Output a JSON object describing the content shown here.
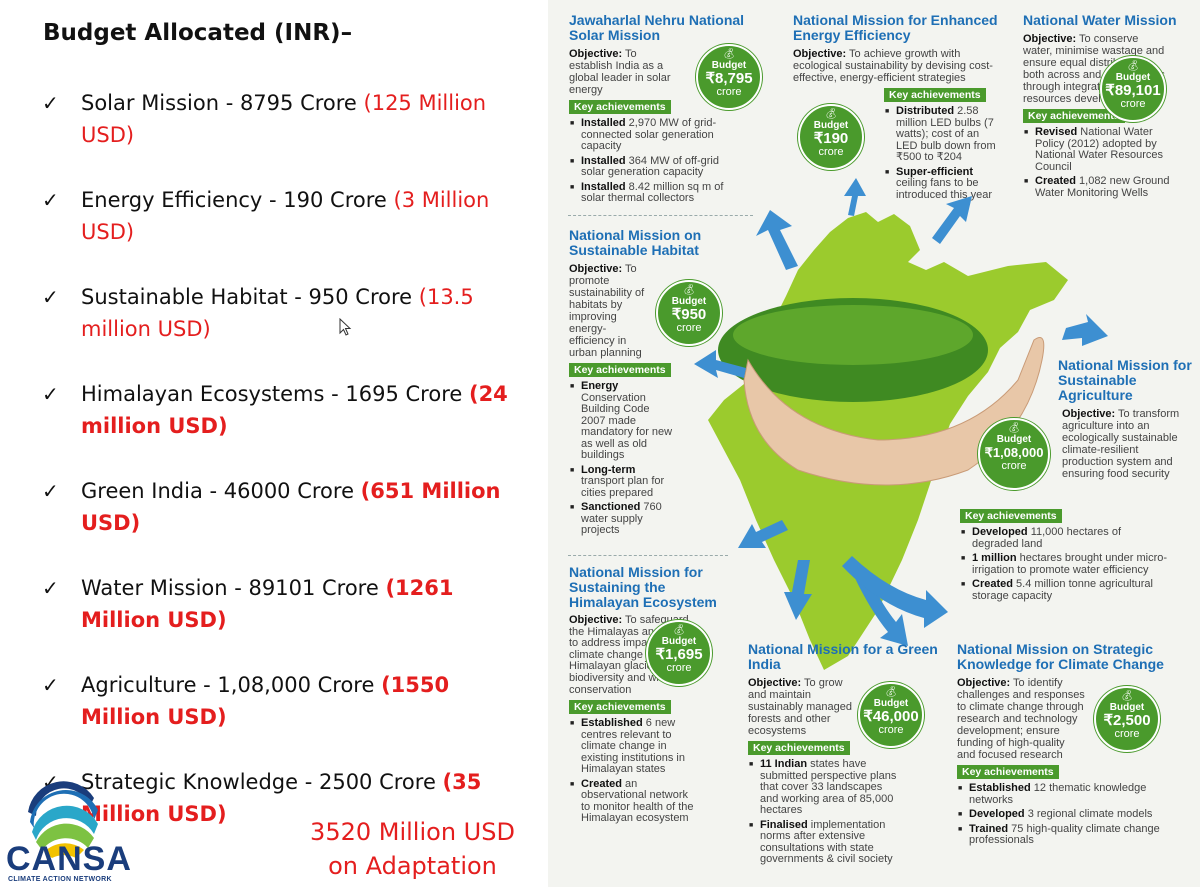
{
  "slide": {
    "heading": "Budget Allocated (INR)–",
    "check_glyph": "✓",
    "items": [
      {
        "text": "Solar Mission - 8795 Crore ",
        "usd": "(125 Million USD)"
      },
      {
        "text": "Energy Efficiency - 190 Crore ",
        "usd": "(3 Million USD)"
      },
      {
        "text": "Sustainable Habitat - 950 Crore ",
        "usd": "(13.5 million USD)"
      },
      {
        "text": "Himalayan Ecosystems - 1695 Crore ",
        "usd": "(24 million USD)"
      },
      {
        "text": "Green India - 46000 Crore ",
        "usd": "(651 Million USD)"
      },
      {
        "text": "Water Mission - 89101 Crore ",
        "usd": "(1261 Million USD)"
      },
      {
        "text": "Agriculture - 1,08,000 Crore ",
        "usd": "(1550 Million USD)"
      },
      {
        "text": "Strategic Knowledge - 2500 Crore ",
        "usd": "(35 Million USD)"
      }
    ],
    "total_line1": "3520 Million USD",
    "total_line2": "on Adaptation",
    "logo_text": "CANSA",
    "logo_subtext": "CLIMATE ACTION NETWORK",
    "colors": {
      "usd": "#e41e1e",
      "logo": "#1a3d7c"
    }
  },
  "infographic": {
    "budget_label": "Budget",
    "key_achievements_label": "Key achievements",
    "objective_label": "Objective:",
    "colors": {
      "heading": "#1e6fb5",
      "green": "#4a9a2c",
      "map": "#9bcb2d"
    },
    "solar": {
      "title": "Jawaharlal Nehru National Solar Mission",
      "objective": "To establish India as a global leader in solar energy",
      "amount": "₹8,795",
      "unit": "crore",
      "achievements": [
        {
          "b": "Installed",
          "t": " 2,970 MW of grid-connected solar generation capacity"
        },
        {
          "b": "Installed",
          "t": " 364 MW of off-grid solar generation capacity"
        },
        {
          "b": "Installed",
          "t": " 8.42 million sq m of solar thermal collectors"
        }
      ]
    },
    "efficiency": {
      "title": "National Mission for Enhanced Energy Efficiency",
      "objective": "To achieve growth with ecological sustainability by devising cost-effective, energy-efficient strategies",
      "amount": "₹190",
      "unit": "crore",
      "achievements": [
        {
          "b": "Distributed",
          "t": " 2.58 million LED bulbs (7 watts); cost of an LED bulb down from ₹500 to ₹204"
        },
        {
          "b": "Super-efficient",
          "t": " ceiling fans to be introduced this year"
        }
      ]
    },
    "water": {
      "title": "National Water Mission",
      "objective": "To conserve water, minimise wastage and ensure equal distribution both across and within states through integrated water resources development",
      "amount": "₹89,101",
      "unit": "crore",
      "achievements": [
        {
          "b": "Revised",
          "t": " National Water Policy (2012) adopted by National Water Resources Council"
        },
        {
          "b": "Created",
          "t": " 1,082 new Ground Water Monitoring Wells"
        }
      ]
    },
    "habitat": {
      "title": "National Mission on Sustainable Habitat",
      "objective": "To promote sustainability of habitats by improving energy-efficiency in urban planning",
      "amount": "₹950",
      "unit": "crore",
      "achievements": [
        {
          "b": "Energy",
          "t": " Conservation Building Code 2007 made mandatory for new as well as old buildings"
        },
        {
          "b": "Long-term",
          "t": " transport plan for cities prepared"
        },
        {
          "b": "Sanctioned",
          "t": " 760 water supply projects"
        }
      ]
    },
    "agriculture": {
      "title": "National Mission for Sustainable Agriculture",
      "objective": "To transform agriculture into an ecologically sustainable climate-resilient production system and ensuring food security",
      "amount": "₹1,08,000",
      "unit": "crore",
      "achievements": [
        {
          "b": "Developed",
          "t": " 11,000 hectares of degraded land"
        },
        {
          "b": "1 million",
          "t": " hectares brought under micro-irrigation to promote water efficiency"
        },
        {
          "b": "Created",
          "t": " 5.4 million tonne agricultural storage capacity"
        }
      ]
    },
    "himalayan": {
      "title": "National Mission for Sustaining the Himalayan Ecosystem",
      "objective": "To safeguard the Himalayas and attempt to address impacts of climate change on Himalayan glaciers, biodiversity and wildlife conservation",
      "amount": "₹1,695",
      "unit": "crore",
      "achievements": [
        {
          "b": "Established",
          "t": " 6 new centres relevant to climate change in existing institutions in Himalayan states"
        },
        {
          "b": "Created",
          "t": " an observational network to monitor health of the Himalayan ecosystem"
        }
      ]
    },
    "green": {
      "title": "National Mission for a Green India",
      "objective": "To grow and maintain sustainably managed forests and other ecosystems",
      "amount": "₹46,000",
      "unit": "crore",
      "achievements": [
        {
          "b": "11 Indian",
          "t": " states have submitted perspective plans that cover 33 landscapes and working area of 85,000 hectares"
        },
        {
          "b": "Finalised",
          "t": " implementation norms after extensive consultations with state governments & civil society"
        }
      ]
    },
    "knowledge": {
      "title": "National Mission on Strategic Knowledge for Climate Change",
      "objective": "To identify challenges and responses to climate change through research and technology development; ensure funding of high-quality and focused research",
      "amount": "₹2,500",
      "unit": "crore",
      "achievements": [
        {
          "b": "Established",
          "t": " 12 thematic knowledge networks"
        },
        {
          "b": "Developed",
          "t": " 3 regional climate models"
        },
        {
          "b": "Trained",
          "t": " 75 high-quality climate change professionals"
        }
      ]
    }
  }
}
